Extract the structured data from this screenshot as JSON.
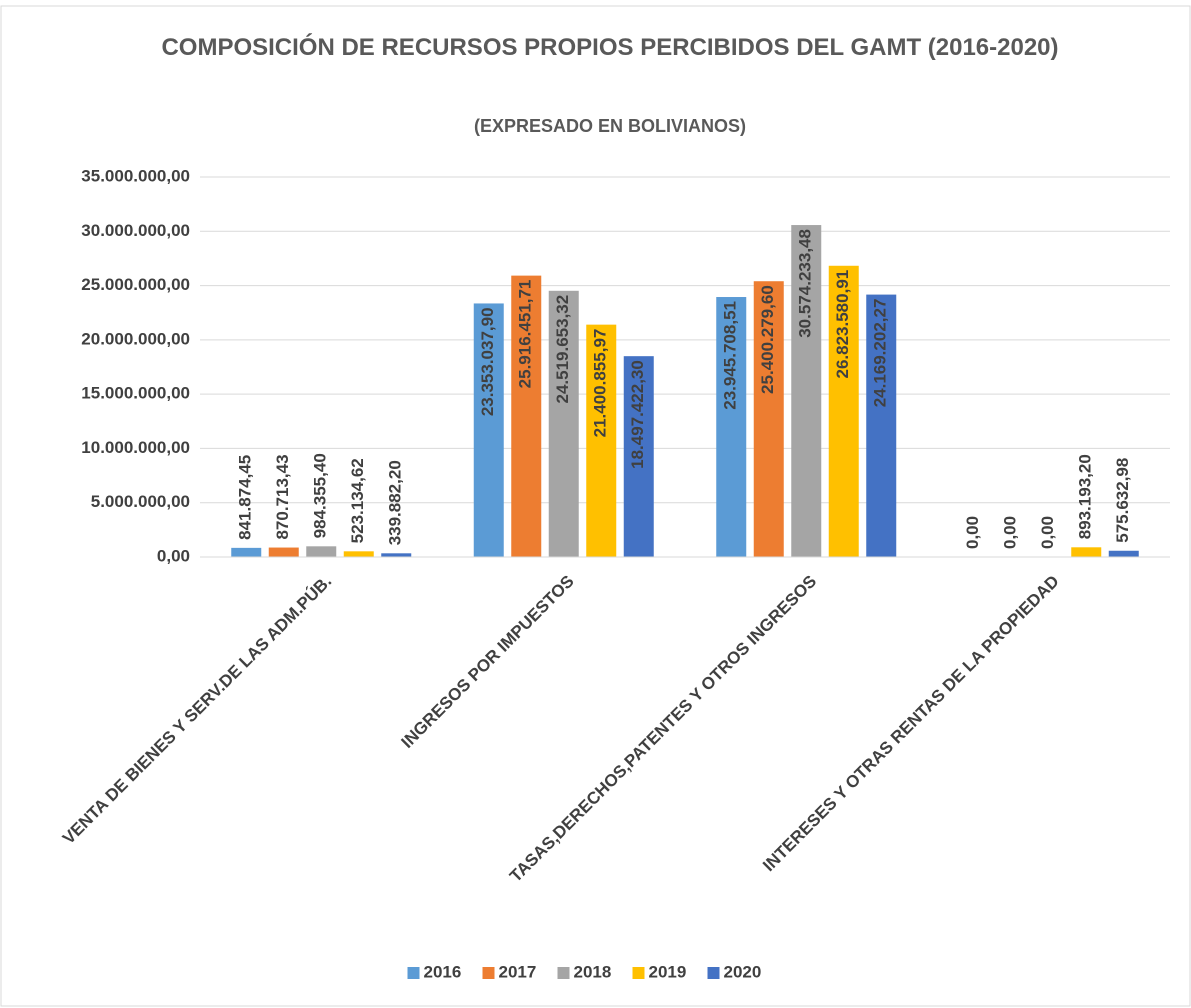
{
  "chart_data": {
    "type": "bar",
    "title": "COMPOSICIÓN DE RECURSOS PROPIOS PERCIBIDOS DEL GAMT (2016-2020)",
    "subtitle": "(EXPRESADO EN BOLIVIANOS)",
    "categories": [
      "VENTA DE BIENES Y SERV.DE LAS ADM.PÚB.",
      "INGRESOS POR IMPUESTOS",
      "TASAS,DERECHOS,PATENTES Y OTROS INGRESOS",
      "INTERESES Y OTRAS RENTAS DE LA PROPIEDAD"
    ],
    "series": [
      {
        "name": "2016",
        "color": "#5b9bd5",
        "values": [
          841874.45,
          23353037.9,
          23945708.51,
          0
        ],
        "value_labels": [
          "841.874,45",
          "23.353.037,90",
          "23.945.708,51",
          "0,00"
        ]
      },
      {
        "name": "2017",
        "color": "#ed7d31",
        "values": [
          870713.43,
          25916451.71,
          25400279.6,
          0
        ],
        "value_labels": [
          "870.713,43",
          "25.916.451,71",
          "25.400.279,60",
          "0,00"
        ]
      },
      {
        "name": "2018",
        "color": "#a5a5a5",
        "values": [
          984355.4,
          24519653.32,
          30574233.48,
          0
        ],
        "value_labels": [
          "984.355,40",
          "24.519.653,32",
          "30.574.233,48",
          "0,00"
        ]
      },
      {
        "name": "2019",
        "color": "#ffc000",
        "values": [
          523134.62,
          21400855.97,
          26823580.91,
          893193.2
        ],
        "value_labels": [
          "523.134,62",
          "21.400.855,97",
          "26.823.580,91",
          "893.193,20"
        ]
      },
      {
        "name": "2020",
        "color": "#4472c4",
        "values": [
          339882.2,
          18497422.3,
          24169202.27,
          575632.98
        ],
        "value_labels": [
          "339.882,20",
          "18.497.422,30",
          "24.169.202,27",
          "575.632,98"
        ]
      }
    ],
    "ylim": [
      0,
      35000000
    ],
    "yticks": [
      {
        "value": 0,
        "label": "0,00"
      },
      {
        "value": 5000000,
        "label": "5.000.000,00"
      },
      {
        "value": 10000000,
        "label": "10.000.000,00"
      },
      {
        "value": 15000000,
        "label": "15.000.000,00"
      },
      {
        "value": 20000000,
        "label": "20.000.000,00"
      },
      {
        "value": 25000000,
        "label": "25.000.000,00"
      },
      {
        "value": 30000000,
        "label": "30.000.000,00"
      },
      {
        "value": 35000000,
        "label": "35.000.000,00"
      }
    ],
    "grid": true,
    "legend": "bottom"
  }
}
